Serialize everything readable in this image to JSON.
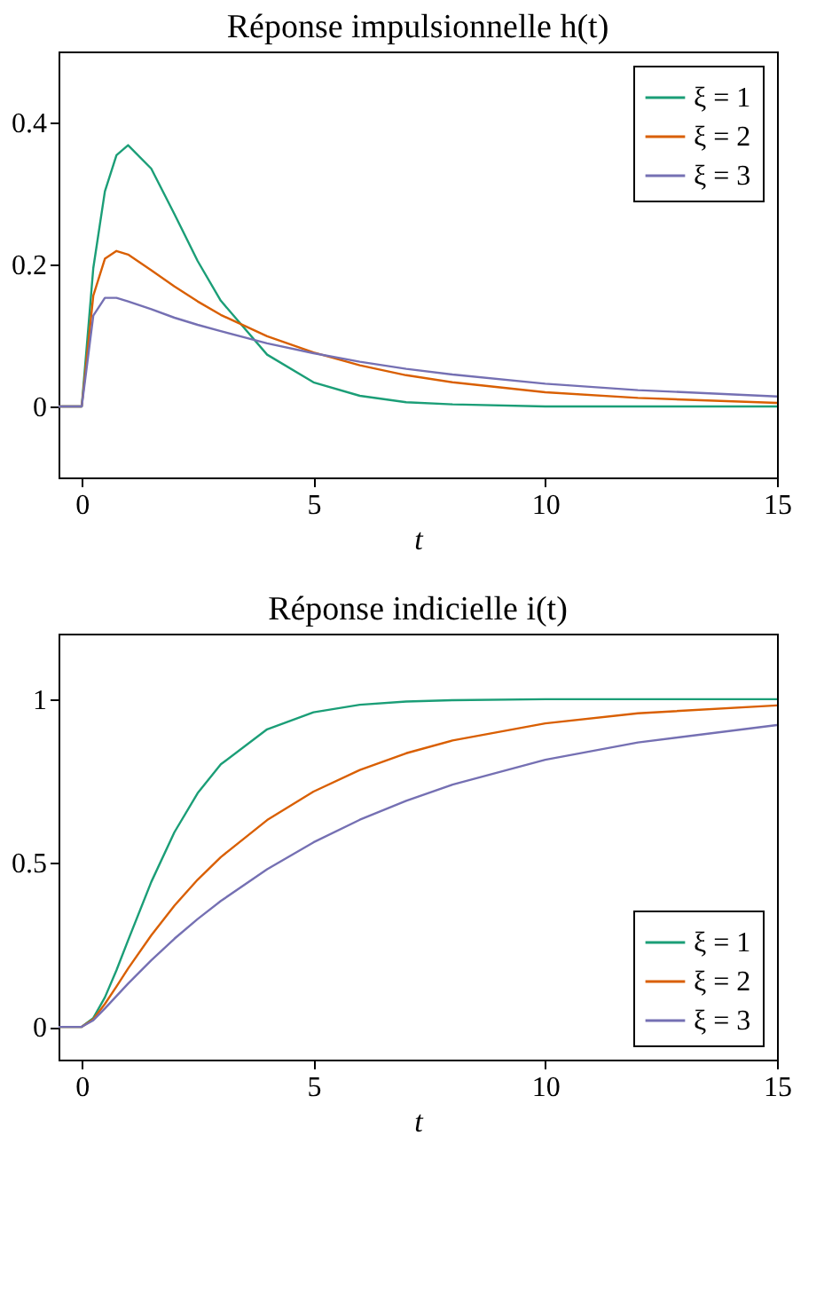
{
  "chart_data": [
    {
      "type": "line",
      "title": "Réponse impulsionnelle h(t)",
      "xlabel": "t",
      "x": [
        -0.5,
        0,
        0.25,
        0.5,
        0.75,
        1,
        1.5,
        2,
        2.5,
        3,
        4,
        5,
        6,
        7,
        8,
        10,
        12,
        15
      ],
      "xlim": [
        -0.5,
        15
      ],
      "xticks": [
        0,
        5,
        10,
        15
      ],
      "ylim": [
        -0.1,
        0.5
      ],
      "yticks": [
        0,
        0.2,
        0.4
      ],
      "grid": false,
      "legend": "top right",
      "line_style": "solid",
      "marker": "none",
      "series": [
        {
          "name": "ξ = 1",
          "color": "#1b9e77",
          "values": [
            0,
            0,
            0.195,
            0.303,
            0.354,
            0.368,
            0.335,
            0.271,
            0.205,
            0.149,
            0.073,
            0.034,
            0.015,
            0.006,
            0.003,
            0,
            0,
            0
          ]
        },
        {
          "name": "ξ = 2",
          "color": "#d95f02",
          "values": [
            0,
            0,
            0.156,
            0.208,
            0.219,
            0.214,
            0.192,
            0.169,
            0.148,
            0.129,
            0.099,
            0.076,
            0.058,
            0.044,
            0.034,
            0.02,
            0.012,
            0.005
          ]
        },
        {
          "name": "ξ = 3",
          "color": "#7570b3",
          "values": [
            0,
            0,
            0.128,
            0.153,
            0.153,
            0.148,
            0.137,
            0.125,
            0.115,
            0.106,
            0.089,
            0.075,
            0.063,
            0.053,
            0.045,
            0.032,
            0.023,
            0.014
          ]
        }
      ]
    },
    {
      "type": "line",
      "title": "Réponse indicielle i(t)",
      "xlabel": "t",
      "x": [
        -0.5,
        0,
        0.25,
        0.5,
        0.75,
        1,
        1.5,
        2,
        2.5,
        3,
        4,
        5,
        6,
        7,
        8,
        10,
        12,
        15
      ],
      "xlim": [
        -0.5,
        15
      ],
      "xticks": [
        0,
        5,
        10,
        15
      ],
      "ylim": [
        -0.1,
        1.2
      ],
      "yticks": [
        0,
        0.5,
        1
      ],
      "grid": false,
      "legend": "bottom right",
      "line_style": "solid",
      "marker": "none",
      "series": [
        {
          "name": "ξ = 1",
          "color": "#1b9e77",
          "values": [
            0,
            0,
            0.027,
            0.09,
            0.173,
            0.264,
            0.442,
            0.594,
            0.713,
            0.801,
            0.908,
            0.96,
            0.983,
            0.993,
            0.997,
            1,
            1,
            1
          ]
        },
        {
          "name": "ξ = 2",
          "color": "#d95f02",
          "values": [
            0,
            0,
            0.023,
            0.07,
            0.123,
            0.178,
            0.279,
            0.37,
            0.449,
            0.518,
            0.631,
            0.718,
            0.784,
            0.835,
            0.874,
            0.926,
            0.957,
            0.981
          ]
        },
        {
          "name": "ξ = 3",
          "color": "#7570b3",
          "values": [
            0,
            0,
            0.02,
            0.056,
            0.094,
            0.132,
            0.203,
            0.269,
            0.329,
            0.384,
            0.481,
            0.563,
            0.632,
            0.69,
            0.739,
            0.815,
            0.868,
            0.921
          ]
        }
      ]
    }
  ]
}
